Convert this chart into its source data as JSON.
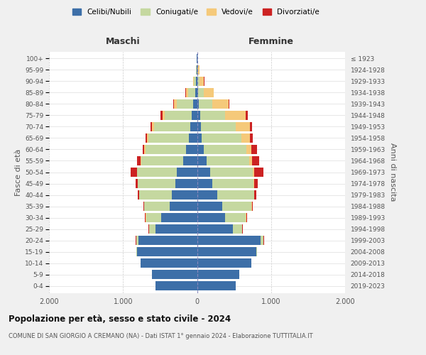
{
  "age_groups": [
    "0-4",
    "5-9",
    "10-14",
    "15-19",
    "20-24",
    "25-29",
    "30-34",
    "35-39",
    "40-44",
    "45-49",
    "50-54",
    "55-59",
    "60-64",
    "65-69",
    "70-74",
    "75-79",
    "80-84",
    "85-89",
    "90-94",
    "95-99",
    "100+"
  ],
  "birth_years": [
    "2019-2023",
    "2014-2018",
    "2009-2013",
    "2004-2008",
    "1999-2003",
    "1994-1998",
    "1989-1993",
    "1984-1988",
    "1979-1983",
    "1974-1978",
    "1969-1973",
    "1964-1968",
    "1959-1963",
    "1954-1958",
    "1949-1953",
    "1944-1948",
    "1939-1943",
    "1934-1938",
    "1929-1933",
    "1924-1928",
    "≤ 1923"
  ],
  "males": {
    "celibi": [
      560,
      610,
      760,
      810,
      790,
      560,
      480,
      370,
      340,
      290,
      270,
      190,
      145,
      115,
      95,
      70,
      55,
      28,
      12,
      4,
      2
    ],
    "coniugati": [
      2,
      2,
      5,
      10,
      30,
      90,
      210,
      340,
      440,
      510,
      540,
      560,
      555,
      540,
      490,
      370,
      220,
      95,
      28,
      8,
      2
    ],
    "vedovi": [
      0,
      0,
      0,
      1,
      2,
      2,
      2,
      2,
      2,
      3,
      5,
      8,
      10,
      20,
      25,
      28,
      38,
      28,
      10,
      2,
      1
    ],
    "divorziati": [
      0,
      0,
      1,
      2,
      3,
      5,
      10,
      15,
      20,
      28,
      85,
      48,
      28,
      18,
      18,
      22,
      8,
      5,
      2,
      1,
      0
    ]
  },
  "females": {
    "nubili": [
      520,
      570,
      730,
      800,
      860,
      480,
      375,
      340,
      270,
      210,
      180,
      125,
      95,
      65,
      55,
      45,
      28,
      18,
      8,
      4,
      2
    ],
    "coniugate": [
      2,
      2,
      5,
      12,
      38,
      128,
      285,
      395,
      500,
      555,
      575,
      580,
      575,
      535,
      465,
      335,
      175,
      75,
      28,
      5,
      2
    ],
    "vedove": [
      0,
      0,
      0,
      1,
      2,
      2,
      3,
      4,
      5,
      10,
      18,
      38,
      68,
      118,
      195,
      278,
      228,
      128,
      58,
      20,
      1
    ],
    "divorziate": [
      0,
      0,
      1,
      2,
      3,
      5,
      10,
      18,
      28,
      48,
      125,
      98,
      68,
      38,
      33,
      28,
      8,
      5,
      2,
      1,
      0
    ]
  },
  "colors": {
    "celibi": "#3d6fa8",
    "coniugati": "#c5d8a0",
    "vedovi": "#f5c97a",
    "divorziati": "#cc2222"
  },
  "title": "Popolazione per età, sesso e stato civile - 2024",
  "subtitle": "COMUNE DI SAN GIORGIO A CREMANO (NA) - Dati ISTAT 1° gennaio 2024 - Elaborazione TUTTITALIA.IT",
  "xlabel_left": "Maschi",
  "xlabel_right": "Femmine",
  "ylabel_left": "Fasce di età",
  "ylabel_right": "Anni di nascita",
  "xlim": 2000,
  "background_color": "#f0f0f0",
  "plot_bg": "#ffffff"
}
